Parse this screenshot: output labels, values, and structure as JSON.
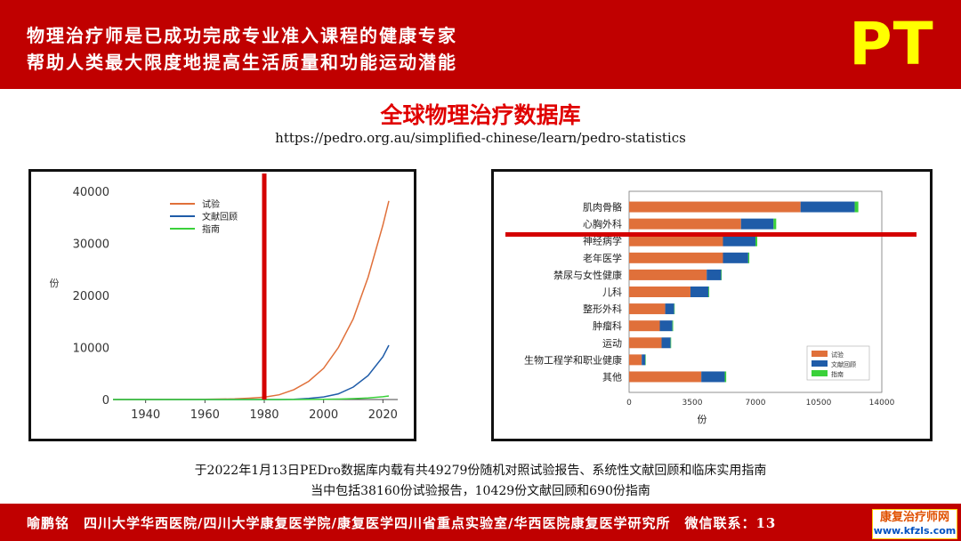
{
  "header": {
    "line1": "物理治疗师是已成功完成专业准入课程的健康专家",
    "line2": "帮助人类最大限度地提高生活质量和功能运动潜能",
    "logo": "PT"
  },
  "title": "全球物理治疗数据库",
  "url": "https://pedro.org.au/simplified-chinese/learn/pedro-statistics",
  "footnote": {
    "line1": "于2022年1月13日PEDro数据库内载有共49279份随机对照试验报告、系统性文献回顾和临床实用指南",
    "line2": "当中包括38160份试验报告，10429份文献回顾和690份指南"
  },
  "footer": {
    "text": "喻鹏铭　四川大学华西医院/四川大学康复医学院/康复医学四川省重点实验室/华西医院康复医学研究所　微信联系：13"
  },
  "watermark": {
    "line1": "康复治疗师网",
    "line2": "www.kfzls.com"
  },
  "colors": {
    "accent": "#c00000",
    "logo": "#ffff00",
    "trials": "#e0703a",
    "reviews": "#1f5ca8",
    "guidelines": "#3ad13a",
    "marker": "#d40000"
  },
  "chart_data": [
    {
      "type": "line",
      "ylabel": "份",
      "xlim": [
        1929,
        2025
      ],
      "ylim": [
        0,
        40000
      ],
      "x_ticks": [
        1940,
        1960,
        1980,
        2000,
        2020
      ],
      "y_ticks": [
        0,
        10000,
        20000,
        30000,
        40000
      ],
      "legend": "top-left",
      "marker_line_x": 1980,
      "series": [
        {
          "name": "试验",
          "color": "#e0703a",
          "x": [
            1929,
            1950,
            1960,
            1970,
            1975,
            1980,
            1985,
            1990,
            1995,
            2000,
            2005,
            2010,
            2015,
            2020,
            2022
          ],
          "y": [
            0,
            10,
            40,
            120,
            250,
            450,
            900,
            1900,
            3500,
            6000,
            10000,
            15500,
            23500,
            33500,
            38160
          ]
        },
        {
          "name": "文献回顾",
          "color": "#1f5ca8",
          "x": [
            1929,
            1985,
            1990,
            1995,
            2000,
            2005,
            2010,
            2015,
            2020,
            2022
          ],
          "y": [
            0,
            0,
            40,
            200,
            500,
            1100,
            2400,
            4600,
            8200,
            10429
          ]
        },
        {
          "name": "指南",
          "color": "#3ad13a",
          "x": [
            1929,
            1990,
            2000,
            2005,
            2010,
            2015,
            2020,
            2022
          ],
          "y": [
            0,
            0,
            40,
            90,
            170,
            310,
            530,
            690
          ]
        }
      ]
    },
    {
      "type": "bar",
      "orientation": "horizontal",
      "stacked": true,
      "xlabel": "份",
      "xlim": [
        0,
        14000
      ],
      "x_ticks": [
        0,
        3500,
        7000,
        10500,
        14000
      ],
      "legend": "bottom-right",
      "marker_line_after_category": 1,
      "categories": [
        "肌肉骨骼",
        "心胸外科",
        "神经病学",
        "老年医学",
        "禁尿与女性健康",
        "儿科",
        "整形外科",
        "肿瘤科",
        "运动",
        "生物工程学和职业健康",
        "其他"
      ],
      "series": [
        {
          "name": "试验",
          "color": "#e0703a",
          "values": [
            9500,
            6200,
            5200,
            5200,
            4300,
            3400,
            2000,
            1700,
            1800,
            700,
            4000
          ]
        },
        {
          "name": "文献回顾",
          "color": "#1f5ca8",
          "values": [
            3000,
            1800,
            1800,
            1400,
            800,
            1000,
            500,
            700,
            500,
            200,
            1300
          ]
        },
        {
          "name": "指南",
          "color": "#3ad13a",
          "values": [
            200,
            150,
            100,
            60,
            30,
            40,
            20,
            40,
            30,
            20,
            80
          ]
        }
      ]
    }
  ]
}
